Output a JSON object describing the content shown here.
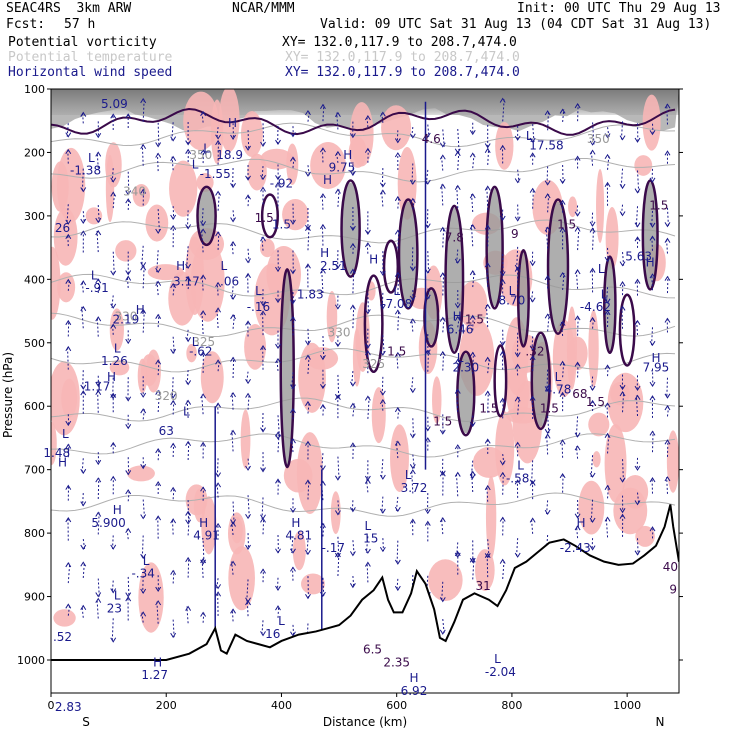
{
  "header": {
    "model": "SEAC4RS  3km ARW",
    "org": "NCAR/MMM",
    "init": "Init: 00 UTC Thu 29 Aug 13",
    "fcst_label": "Fcst:",
    "fcst_value": "57 h",
    "valid": "Valid: 09 UTC Sat 31 Aug 13 (04 CDT Sat 31 Aug 13)",
    "fields": [
      {
        "name": "Potential vorticity",
        "xy": "XY= 132.0,117.9 to 208.7,474.0"
      },
      {
        "name": "Potential temperature",
        "xy": "XY= 132.0,117.9 to 208.7,474.0"
      },
      {
        "name": "Horizontal wind speed",
        "xy": "XY= 132.0,117.9 to 208.7,474.0"
      }
    ]
  },
  "colors": {
    "pv_fill": "#f7b6b6",
    "pv_contour": "#3a0a4a",
    "theta": "#b0b0b0",
    "wind": "#1a1a8c",
    "terrain": "#000000"
  },
  "chart_data": {
    "type": "cross-section",
    "xlabel": "Distance (km)",
    "ylabel": "Pressure (hPa)",
    "xlim": [
      0,
      1090
    ],
    "ylim": [
      1050,
      100
    ],
    "x_ticks": [
      "0",
      "200",
      "400",
      "600",
      "800",
      "1000"
    ],
    "y_ticks": [
      "100",
      "200",
      "300",
      "400",
      "500",
      "600",
      "700",
      "800",
      "900",
      "1000"
    ],
    "x_end_labels": {
      "left": "S",
      "right": "N"
    },
    "theta_labels": [
      {
        "x": 260,
        "p": 210,
        "text": "350"
      },
      {
        "x": 145,
        "p": 268,
        "text": "340"
      },
      {
        "x": 130,
        "p": 465,
        "text": "330"
      },
      {
        "x": 200,
        "p": 590,
        "text": "320"
      },
      {
        "x": 265,
        "p": 505,
        "text": "325"
      },
      {
        "x": 500,
        "p": 490,
        "text": "330"
      },
      {
        "x": 560,
        "p": 540,
        "text": "325"
      },
      {
        "x": 950,
        "p": 185,
        "text": "350"
      }
    ],
    "hl_labels": [
      {
        "x": 110,
        "p": 130,
        "text": "5.09"
      },
      {
        "x": 310,
        "p": 210,
        "text": "18.9"
      },
      {
        "x": 60,
        "p": 235,
        "text": "-1.38"
      },
      {
        "x": 285,
        "p": 240,
        "text": "-1.55"
      },
      {
        "x": 400,
        "p": 255,
        "text": "-.92"
      },
      {
        "x": 505,
        "p": 230,
        "text": "9.75"
      },
      {
        "x": 860,
        "p": 195,
        "text": "17.58"
      },
      {
        "x": 20,
        "p": 325,
        "text": "26"
      },
      {
        "x": 400,
        "p": 320,
        "text": "1.5"
      },
      {
        "x": 80,
        "p": 420,
        "text": "-.91"
      },
      {
        "x": 235,
        "p": 410,
        "text": "3.17"
      },
      {
        "x": 310,
        "p": 410,
        "text": ".06"
      },
      {
        "x": 360,
        "p": 450,
        "text": "-.16"
      },
      {
        "x": 450,
        "p": 430,
        "text": "1.83"
      },
      {
        "x": 490,
        "p": 385,
        "text": "2.51"
      },
      {
        "x": 600,
        "p": 445,
        "text": "-7.08"
      },
      {
        "x": 710,
        "p": 485,
        "text": "6.46"
      },
      {
        "x": 800,
        "p": 440,
        "text": "8.70"
      },
      {
        "x": 945,
        "p": 450,
        "text": "-4.62"
      },
      {
        "x": 1020,
        "p": 370,
        "text": "5.63"
      },
      {
        "x": 130,
        "p": 470,
        "text": "2.19"
      },
      {
        "x": 260,
        "p": 520,
        "text": "-.62"
      },
      {
        "x": 110,
        "p": 535,
        "text": "1.26"
      },
      {
        "x": 80,
        "p": 575,
        "text": "1.17"
      },
      {
        "x": 720,
        "p": 545,
        "text": "2.30"
      },
      {
        "x": 880,
        "p": 580,
        "text": "4.78"
      },
      {
        "x": 1050,
        "p": 545,
        "text": "7.95"
      },
      {
        "x": 200,
        "p": 645,
        "text": "63"
      },
      {
        "x": 10,
        "p": 680,
        "text": "1.48"
      },
      {
        "x": 630,
        "p": 735,
        "text": "3.72"
      },
      {
        "x": 810,
        "p": 720,
        "text": "-.58"
      },
      {
        "x": 100,
        "p": 790,
        "text": "5.900"
      },
      {
        "x": 270,
        "p": 810,
        "text": "4.91"
      },
      {
        "x": 430,
        "p": 810,
        "text": "4.81"
      },
      {
        "x": 490,
        "p": 830,
        "text": "-.17"
      },
      {
        "x": 555,
        "p": 815,
        "text": "15"
      },
      {
        "x": 910,
        "p": 830,
        "text": "-2.43"
      },
      {
        "x": 160,
        "p": 870,
        "text": "-.34"
      },
      {
        "x": 110,
        "p": 925,
        "text": "23"
      },
      {
        "x": 20,
        "p": 970,
        "text": ".52"
      },
      {
        "x": 385,
        "p": 965,
        "text": "16"
      },
      {
        "x": 180,
        "p": 1030,
        "text": "1.27"
      },
      {
        "x": 630,
        "p": 1055,
        "text": "6.92"
      },
      {
        "x": 780,
        "p": 1025,
        "text": "-2.04"
      },
      {
        "x": 30,
        "p": 1080,
        "text": "2.83"
      }
    ],
    "pv_contour_labels": [
      {
        "x": 370,
        "p": 310,
        "text": "1.5"
      },
      {
        "x": 700,
        "p": 340,
        "text": "7.8"
      },
      {
        "x": 805,
        "p": 335,
        "text": "9"
      },
      {
        "x": 895,
        "p": 320,
        "text": "1.5"
      },
      {
        "x": 1055,
        "p": 290,
        "text": "1.5"
      },
      {
        "x": 600,
        "p": 520,
        "text": "1.5"
      },
      {
        "x": 735,
        "p": 470,
        "text": "1.5"
      },
      {
        "x": 840,
        "p": 520,
        "text": ".32"
      },
      {
        "x": 680,
        "p": 630,
        "text": "1.5"
      },
      {
        "x": 760,
        "p": 610,
        "text": "1.5"
      },
      {
        "x": 865,
        "p": 610,
        "text": "1.5"
      },
      {
        "x": 945,
        "p": 600,
        "text": "1.5"
      },
      {
        "x": 918,
        "p": 587,
        "text": "68"
      },
      {
        "x": 750,
        "p": 890,
        "text": "31"
      },
      {
        "x": 558,
        "p": 990,
        "text": "6.5"
      },
      {
        "x": 600,
        "p": 1010,
        "text": "2.35"
      },
      {
        "x": 1075,
        "p": 860,
        "text": "40"
      },
      {
        "x": 1080,
        "p": 895,
        "text": "9"
      },
      {
        "x": 660,
        "p": 185,
        "text": "4.6"
      }
    ],
    "hl_symbols": [
      {
        "x": 315,
        "p": 160,
        "t": "H"
      },
      {
        "x": 270,
        "p": 200,
        "t": "L"
      },
      {
        "x": 70,
        "p": 215,
        "t": "L"
      },
      {
        "x": 250,
        "p": 225,
        "t": "L"
      },
      {
        "x": 515,
        "p": 210,
        "t": "H"
      },
      {
        "x": 480,
        "p": 250,
        "t": "H"
      },
      {
        "x": 830,
        "p": 180,
        "t": "L"
      },
      {
        "x": 960,
        "p": 430,
        "t": "L"
      },
      {
        "x": 955,
        "p": 390,
        "t": "L"
      },
      {
        "x": 75,
        "p": 400,
        "t": "L"
      },
      {
        "x": 225,
        "p": 385,
        "t": "H"
      },
      {
        "x": 300,
        "p": 385,
        "t": "L"
      },
      {
        "x": 360,
        "p": 425,
        "t": "L"
      },
      {
        "x": 475,
        "p": 365,
        "t": "H"
      },
      {
        "x": 560,
        "p": 375,
        "t": "H"
      },
      {
        "x": 600,
        "p": 425,
        "t": "L"
      },
      {
        "x": 705,
        "p": 465,
        "t": "H"
      },
      {
        "x": 800,
        "p": 425,
        "t": "L"
      },
      {
        "x": 1040,
        "p": 380,
        "t": "H"
      },
      {
        "x": 155,
        "p": 455,
        "t": "H"
      },
      {
        "x": 250,
        "p": 505,
        "t": "L"
      },
      {
        "x": 115,
        "p": 515,
        "t": "L"
      },
      {
        "x": 105,
        "p": 560,
        "t": "H"
      },
      {
        "x": 710,
        "p": 530,
        "t": "L"
      },
      {
        "x": 880,
        "p": 560,
        "t": "L"
      },
      {
        "x": 1050,
        "p": 530,
        "t": "H"
      },
      {
        "x": 235,
        "p": 615,
        "t": "L"
      },
      {
        "x": 25,
        "p": 650,
        "t": "L"
      },
      {
        "x": 620,
        "p": 715,
        "t": "L"
      },
      {
        "x": 815,
        "p": 700,
        "t": "L"
      },
      {
        "x": 115,
        "p": 770,
        "t": "H"
      },
      {
        "x": 265,
        "p": 790,
        "t": "H"
      },
      {
        "x": 425,
        "p": 790,
        "t": "H"
      },
      {
        "x": 920,
        "p": 790,
        "t": "H"
      },
      {
        "x": 550,
        "p": 795,
        "t": "L"
      },
      {
        "x": 165,
        "p": 850,
        "t": "L"
      },
      {
        "x": 115,
        "p": 905,
        "t": "L"
      },
      {
        "x": 400,
        "p": 945,
        "t": "L"
      },
      {
        "x": 185,
        "p": 1010,
        "t": "H"
      },
      {
        "x": 630,
        "p": 1035,
        "t": "H"
      },
      {
        "x": 775,
        "p": 1005,
        "t": "L"
      },
      {
        "x": 20,
        "p": 695,
        "t": "H"
      }
    ],
    "terrain_profile": [
      [
        0,
        1000
      ],
      [
        15,
        1000
      ],
      [
        60,
        1000
      ],
      [
        100,
        1000
      ],
      [
        150,
        1000
      ],
      [
        200,
        1000
      ],
      [
        240,
        990
      ],
      [
        270,
        975
      ],
      [
        285,
        950
      ],
      [
        295,
        985
      ],
      [
        305,
        990
      ],
      [
        320,
        960
      ],
      [
        340,
        970
      ],
      [
        360,
        975
      ],
      [
        380,
        980
      ],
      [
        400,
        970
      ],
      [
        430,
        960
      ],
      [
        460,
        955
      ],
      [
        480,
        950
      ],
      [
        500,
        945
      ],
      [
        520,
        930
      ],
      [
        540,
        905
      ],
      [
        560,
        890
      ],
      [
        575,
        870
      ],
      [
        585,
        905
      ],
      [
        595,
        925
      ],
      [
        610,
        925
      ],
      [
        625,
        895
      ],
      [
        635,
        860
      ],
      [
        650,
        880
      ],
      [
        665,
        920
      ],
      [
        675,
        965
      ],
      [
        685,
        970
      ],
      [
        700,
        940
      ],
      [
        715,
        905
      ],
      [
        735,
        895
      ],
      [
        760,
        905
      ],
      [
        775,
        915
      ],
      [
        790,
        890
      ],
      [
        805,
        855
      ],
      [
        825,
        845
      ],
      [
        845,
        830
      ],
      [
        865,
        815
      ],
      [
        890,
        810
      ],
      [
        910,
        820
      ],
      [
        935,
        835
      ],
      [
        960,
        845
      ],
      [
        985,
        850
      ],
      [
        1010,
        848
      ],
      [
        1030,
        835
      ],
      [
        1050,
        820
      ],
      [
        1065,
        790
      ],
      [
        1075,
        755
      ],
      [
        1080,
        790
      ],
      [
        1090,
        845
      ]
    ]
  }
}
